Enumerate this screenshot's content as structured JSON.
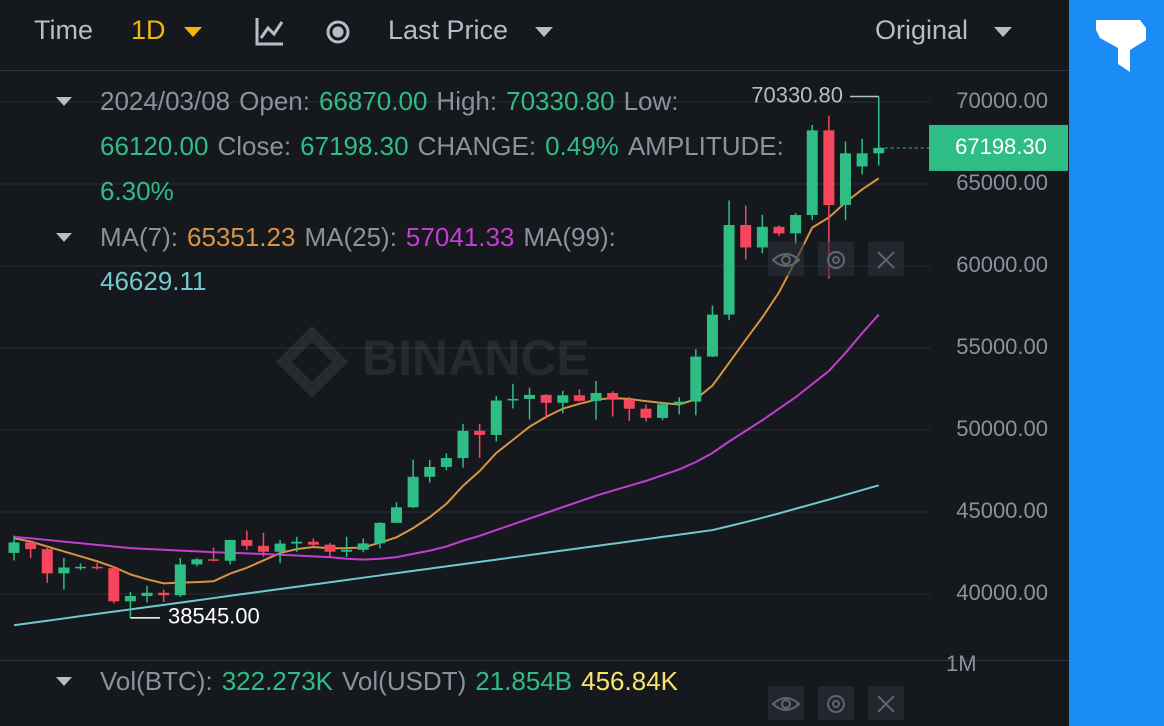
{
  "toolbar": {
    "time": "Time",
    "interval": "1D",
    "price_type": "Last Price",
    "view": "Original"
  },
  "info": {
    "date": "2024/03/08",
    "open_label": "Open:",
    "open": "66870.00",
    "high_label": "High:",
    "high": "70330.80",
    "low_label": "Low:",
    "low": "66120.00",
    "close_label": "Close:",
    "close": "67198.30",
    "change_label": "CHANGE:",
    "change": "0.49%",
    "amplitude_label": "AMPLITUDE:",
    "amplitude": "6.30%"
  },
  "volume_legend": {
    "btc_label": "Vol(BTC):",
    "btc": "322.273K",
    "usdt_label": "Vol(USDT)",
    "usdt": "21.854B",
    "ma": "456.84K",
    "axis_label": "1M"
  },
  "watermark": "BINANCE",
  "chart_data": {
    "type": "candlestick",
    "up_color": "#2ebd85",
    "down_color": "#f6465d",
    "open": [
      42510,
      43150,
      42740,
      41260,
      41620,
      41660,
      41580,
      39560,
      39880,
      40080,
      39930,
      41810,
      42120,
      42030,
      43300,
      42940,
      42580,
      43080,
      43190,
      43010,
      42580,
      42700,
      43090,
      44340,
      45290,
      47150,
      47750,
      48290,
      49950,
      49700,
      51800,
      51900,
      52140,
      51660,
      52120,
      51780,
      52260,
      51850,
      51300,
      50740,
      51570,
      51730,
      54480,
      57040,
      62500,
      61130,
      62390,
      61990,
      63110,
      68270,
      63720,
      66070,
      66870
    ],
    "high": [
      43570,
      43200,
      42930,
      42200,
      41870,
      41880,
      41690,
      40130,
      40500,
      40280,
      42200,
      42190,
      42840,
      43310,
      43880,
      43740,
      43300,
      43490,
      43390,
      43120,
      43500,
      43390,
      44380,
      45600,
      48200,
      48170,
      48580,
      50380,
      50370,
      52080,
      52820,
      52580,
      52190,
      52390,
      52480,
      52990,
      52370,
      52010,
      51550,
      51690,
      52000,
      54940,
      57590,
      64000,
      63680,
      63120,
      62480,
      63230,
      68600,
      69170,
      67600,
      67750,
      70330.8
    ],
    "low": [
      42050,
      42190,
      40680,
      40280,
      41450,
      41490,
      39430,
      38545,
      39490,
      39510,
      39830,
      41680,
      41990,
      41800,
      42680,
      42280,
      41880,
      42570,
      42880,
      42220,
      42260,
      42550,
      42780,
      44340,
      45250,
      46800,
      47550,
      47700,
      48300,
      49300,
      51320,
      50650,
      50700,
      51020,
      51730,
      50630,
      50820,
      50550,
      50520,
      50600,
      50950,
      50900,
      54450,
      56700,
      60400,
      60780,
      61830,
      61320,
      62800,
      59220,
      62790,
      65580,
      66120
    ],
    "close": [
      43150,
      42740,
      41260,
      41620,
      41660,
      41580,
      39560,
      39880,
      40080,
      39930,
      41810,
      42120,
      42030,
      43300,
      42940,
      42580,
      43080,
      43190,
      43010,
      42580,
      42700,
      43090,
      44340,
      45290,
      47150,
      47750,
      48290,
      49950,
      49700,
      51800,
      51900,
      52140,
      51660,
      52120,
      51780,
      52260,
      51850,
      51300,
      50740,
      51570,
      51730,
      54480,
      57040,
      62500,
      61130,
      62390,
      61990,
      63110,
      68270,
      63720,
      66870,
      66870,
      67198.3
    ],
    "series": [
      {
        "name": "MA(7):",
        "color": "#d89443",
        "legend_value": "65351.23",
        "values": [
          43400,
          43200,
          42900,
          42600,
          42300,
          42000,
          41650,
          41200,
          40900,
          40650,
          40700,
          40730,
          40780,
          41250,
          41600,
          42050,
          42500,
          42740,
          42870,
          42790,
          42800,
          42840,
          43130,
          43460,
          44020,
          44690,
          45500,
          46600,
          47500,
          48600,
          49400,
          50200,
          50800,
          51300,
          51600,
          51850,
          51950,
          51890,
          51760,
          51650,
          51560,
          51880,
          52710,
          54100,
          55500,
          56870,
          58390,
          60330,
          62340,
          62960,
          63880,
          64670,
          65351.23
        ]
      },
      {
        "name": "MA(25):",
        "color": "#c33dd1",
        "legend_value": "57041.33",
        "values": [
          43480,
          43400,
          43300,
          43200,
          43100,
          43000,
          42900,
          42800,
          42750,
          42700,
          42650,
          42600,
          42550,
          42520,
          42480,
          42440,
          42400,
          42350,
          42300,
          42250,
          42150,
          42100,
          42150,
          42250,
          42450,
          42650,
          42900,
          43250,
          43550,
          43900,
          44250,
          44600,
          44950,
          45300,
          45650,
          46000,
          46300,
          46600,
          46900,
          47250,
          47600,
          48050,
          48600,
          49300,
          49950,
          50600,
          51300,
          52000,
          52800,
          53600,
          54700,
          55900,
          57041.33
        ]
      },
      {
        "name": "MA(99):",
        "color": "#70c9cc",
        "legend_value": "46629.11",
        "values": [
          38100,
          38238,
          38376,
          38514,
          38652,
          38790,
          38928,
          39066,
          39204,
          39342,
          39480,
          39618,
          39756,
          39894,
          40032,
          40170,
          40308,
          40446,
          40584,
          40722,
          40860,
          40998,
          41136,
          41274,
          41412,
          41550,
          41688,
          41826,
          41964,
          42102,
          42240,
          42378,
          42516,
          42654,
          42792,
          42930,
          43068,
          43207,
          43346,
          43485,
          43624,
          43763,
          43902,
          44140,
          44390,
          44650,
          44920,
          45200,
          45480,
          45760,
          46050,
          46340,
          46629.11
        ]
      }
    ],
    "ylim": [
      35980,
      71950
    ],
    "yticks": [
      {
        "value": 40000,
        "label": "40000.00"
      },
      {
        "value": 45000,
        "label": "45000.00"
      },
      {
        "value": 50000,
        "label": "50000.00"
      },
      {
        "value": 55000,
        "label": "55000.00"
      },
      {
        "value": 60000,
        "label": "60000.00"
      },
      {
        "value": 65000,
        "label": "65000.00"
      },
      {
        "value": 70000,
        "label": "70000.00"
      }
    ],
    "grid": true,
    "last_price": {
      "value": 67198.3,
      "label": "67198.30"
    },
    "max_marker": {
      "value": 70330.8,
      "label": "70330.80"
    },
    "min_marker": {
      "value": 38545,
      "label": "38545.00"
    }
  }
}
